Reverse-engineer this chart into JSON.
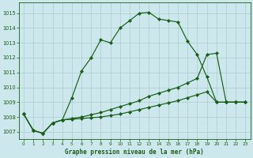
{
  "bg_color": "#cce8ec",
  "grid_color": "#aacccc",
  "line_color": "#1a5c1a",
  "title": "Graphe pression niveau de la mer (hPa)",
  "xlim": [
    -0.5,
    23.5
  ],
  "ylim": [
    1006.5,
    1015.7
  ],
  "yticks": [
    1007,
    1008,
    1009,
    1010,
    1011,
    1012,
    1013,
    1014,
    1015
  ],
  "xticks": [
    0,
    1,
    2,
    3,
    4,
    5,
    6,
    7,
    8,
    9,
    10,
    11,
    12,
    13,
    14,
    15,
    16,
    17,
    18,
    19,
    20,
    21,
    22,
    23
  ],
  "series1_x": [
    0,
    1,
    2,
    3,
    4,
    5,
    6,
    7,
    8,
    9,
    10,
    11,
    12,
    13,
    14,
    15,
    16,
    17,
    18,
    19,
    20,
    21,
    22,
    23
  ],
  "series1_y": [
    1008.2,
    1007.1,
    1006.9,
    1007.6,
    1007.8,
    1009.3,
    1011.1,
    1012.0,
    1013.2,
    1013.0,
    1014.0,
    1014.5,
    1015.0,
    1015.05,
    1014.6,
    1014.5,
    1014.4,
    1013.1,
    1012.2,
    1010.7,
    1009.0,
    1009.0,
    1009.0,
    1009.0
  ],
  "series2_x": [
    0,
    1,
    2,
    3,
    4,
    5,
    6,
    7,
    8,
    9,
    10,
    11,
    12,
    13,
    14,
    15,
    16,
    17,
    18,
    19,
    20,
    21,
    22,
    23
  ],
  "series2_y": [
    1008.2,
    1007.1,
    1006.9,
    1007.6,
    1007.8,
    1007.9,
    1008.0,
    1008.15,
    1008.3,
    1008.5,
    1008.7,
    1008.9,
    1009.1,
    1009.4,
    1009.6,
    1009.8,
    1010.0,
    1010.3,
    1010.6,
    1012.2,
    1012.3,
    1009.0,
    1009.0,
    1009.0
  ],
  "series3_x": [
    0,
    1,
    2,
    3,
    4,
    5,
    6,
    7,
    8,
    9,
    10,
    11,
    12,
    13,
    14,
    15,
    16,
    17,
    18,
    19,
    20,
    21,
    22,
    23
  ],
  "series3_y": [
    1008.2,
    1007.1,
    1006.9,
    1007.6,
    1007.8,
    1007.85,
    1007.9,
    1007.95,
    1008.0,
    1008.1,
    1008.2,
    1008.35,
    1008.5,
    1008.65,
    1008.8,
    1008.95,
    1009.1,
    1009.3,
    1009.5,
    1009.7,
    1009.0,
    1009.0,
    1009.0,
    1009.0
  ]
}
